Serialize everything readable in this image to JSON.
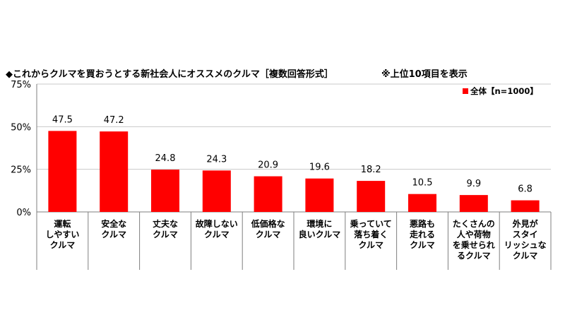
{
  "title": "◆これからクルマを買おうとする新社会人にオススメのクルマ［複数回答形式］",
  "note": "※上位10項目を表示",
  "legend": "全体【n=1000】",
  "colors": {
    "bar": "#ff0000",
    "grid": "#c8c8c8",
    "axis": "#7f7f7f"
  },
  "chart_data": {
    "type": "bar",
    "title": "◆これからクルマを買おうとする新社会人にオススメのクルマ［複数回答形式］",
    "ylim": [
      0,
      75
    ],
    "yticks": [
      "0%",
      "25%",
      "50%",
      "75%"
    ],
    "grid": "horizontal",
    "legend_position": "top-right",
    "categories": [
      [
        "運転",
        "しやすい",
        "クルマ"
      ],
      [
        "安全な",
        "クルマ"
      ],
      [
        "丈夫な",
        "クルマ"
      ],
      [
        "故障しない",
        "クルマ"
      ],
      [
        "低価格な",
        "クルマ"
      ],
      [
        "環境に",
        "良いクルマ"
      ],
      [
        "乗っていて",
        "落ち着く",
        "クルマ"
      ],
      [
        "悪路も",
        "走れる",
        "クルマ"
      ],
      [
        "たくさんの",
        "人や荷物",
        "を乗せられ",
        "るクルマ"
      ],
      [
        "外見が",
        "スタイ",
        "リッシュな",
        "クルマ"
      ]
    ],
    "series": [
      {
        "name": "全体【n=1000】",
        "values": [
          47.5,
          47.2,
          24.8,
          24.3,
          20.9,
          19.6,
          18.2,
          10.5,
          9.9,
          6.8
        ]
      }
    ]
  }
}
